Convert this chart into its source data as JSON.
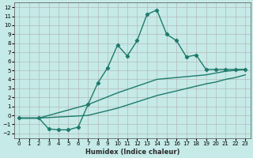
{
  "title": "",
  "xlabel": "Humidex (Indice chaleur)",
  "ylabel": "",
  "bg_color": "#c5eae7",
  "grid_color": "#b0b0b0",
  "line_color": "#1e7a6d",
  "xlim": [
    -0.5,
    23.5
  ],
  "ylim": [
    -2.5,
    12.5
  ],
  "xticks": [
    0,
    1,
    2,
    3,
    4,
    5,
    6,
    7,
    8,
    9,
    10,
    11,
    12,
    13,
    14,
    15,
    16,
    17,
    18,
    19,
    20,
    21,
    22,
    23
  ],
  "yticks": [
    -2,
    -1,
    0,
    1,
    2,
    3,
    4,
    5,
    6,
    7,
    8,
    9,
    10,
    11,
    12
  ],
  "series1_x": [
    0,
    2,
    3,
    4,
    5,
    6,
    7,
    8,
    9,
    10,
    11,
    12,
    13,
    14,
    15,
    16,
    17,
    18,
    19,
    20,
    21,
    22,
    23
  ],
  "series1_y": [
    -0.3,
    -0.3,
    -1.5,
    -1.6,
    -1.6,
    -1.3,
    1.2,
    3.6,
    5.3,
    7.8,
    6.6,
    8.3,
    11.2,
    11.7,
    9.0,
    8.3,
    6.5,
    6.7,
    5.1,
    5.1,
    5.1,
    5.1,
    5.1
  ],
  "series2_x": [
    0,
    2,
    7,
    10,
    14,
    19,
    20,
    21,
    22,
    23
  ],
  "series2_y": [
    -0.3,
    -0.3,
    1.2,
    2.5,
    4.0,
    4.5,
    4.7,
    4.9,
    5.0,
    5.1
  ],
  "series3_x": [
    0,
    2,
    7,
    10,
    14,
    19,
    20,
    21,
    22,
    23
  ],
  "series3_y": [
    -0.3,
    -0.3,
    0.0,
    0.8,
    2.2,
    3.5,
    3.7,
    4.0,
    4.2,
    4.5
  ],
  "marker": "D",
  "marker_size": 2.2,
  "line_width": 1.0,
  "tick_fontsize": 5.0,
  "xlabel_fontsize": 6.0
}
